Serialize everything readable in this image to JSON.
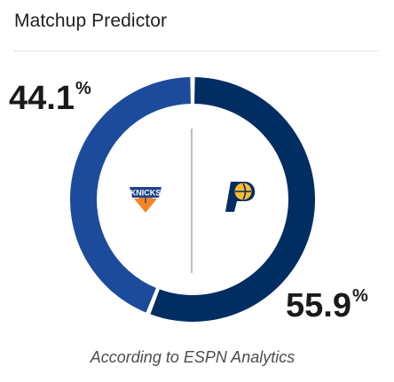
{
  "header": {
    "title": "Matchup Predictor"
  },
  "predictor": {
    "away_team": {
      "name": "Knicks",
      "logo_text": "KNICKS",
      "win_pct": "44.1",
      "color": "#1d4b9c"
    },
    "home_team": {
      "name": "Pacers",
      "logo_text": "P",
      "win_pct": "55.9",
      "color": "#002d62",
      "accent": "#fdbb30"
    },
    "percent_sign": "%"
  },
  "chart_data": {
    "type": "pie",
    "categories": [
      "Knicks",
      "Pacers"
    ],
    "values": [
      44.1,
      55.9
    ],
    "colors": [
      "#1d4b9c",
      "#002d62"
    ],
    "title": ""
  },
  "footer": {
    "source_text": "According to ESPN Analytics"
  }
}
